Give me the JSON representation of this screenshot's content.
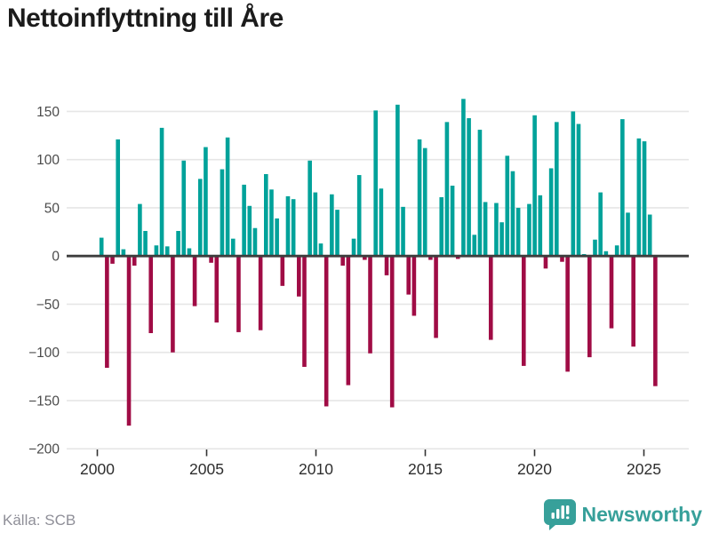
{
  "title": "Nettoinflyttning till Åre",
  "source": "Källa: SCB",
  "brand": {
    "name": "Newsworthy",
    "icon": "bar-chart-speech-bubble"
  },
  "colors": {
    "positive_bar": "#00a29a",
    "negative_bar": "#a00c45",
    "gridline": "#e6e6e6",
    "zero_line": "#3d3d3d",
    "axis_tick_text": "#4b4b4b",
    "x_tick_text": "#2e2e2e",
    "title_text": "#1b1b1b",
    "source_text": "#8f8f98",
    "brand_teal": "#37a09a"
  },
  "chart_data": {
    "type": "bar",
    "title": "Nettoinflyttning till Åre",
    "frequency": "quarterly",
    "start": {
      "year": 2000,
      "quarter": 1
    },
    "end": {
      "year": 2025,
      "quarter": 2
    },
    "values": [
      19,
      -116,
      -8,
      121,
      7,
      -176,
      -10,
      54,
      26,
      -80,
      11,
      133,
      10,
      -100,
      26,
      99,
      8,
      -52,
      80,
      113,
      -7,
      -69,
      90,
      123,
      18,
      -79,
      74,
      52,
      29,
      -77,
      85,
      69,
      39,
      -31,
      62,
      59,
      -42,
      -115,
      99,
      66,
      13,
      -156,
      64,
      48,
      -10,
      -134,
      18,
      84,
      -4,
      -101,
      151,
      70,
      -20,
      -157,
      157,
      51,
      -40,
      -62,
      121,
      112,
      -4,
      -85,
      61,
      139,
      73,
      -3,
      163,
      143,
      22,
      131,
      56,
      -87,
      55,
      35,
      104,
      88,
      50,
      -114,
      54,
      146,
      63,
      -13,
      91,
      139,
      -6,
      -120,
      150,
      137,
      2,
      -105,
      17,
      66,
      5,
      -75,
      11,
      142,
      45,
      -94,
      122,
      119,
      43,
      -135
    ],
    "x_ticks": [
      2000,
      2005,
      2010,
      2015,
      2020,
      2025
    ],
    "y_ticks": [
      150,
      100,
      50,
      0,
      -50,
      -100,
      -150,
      -200
    ],
    "ylim": [
      -200,
      170
    ],
    "grid": "horizontal",
    "legend": "none"
  }
}
